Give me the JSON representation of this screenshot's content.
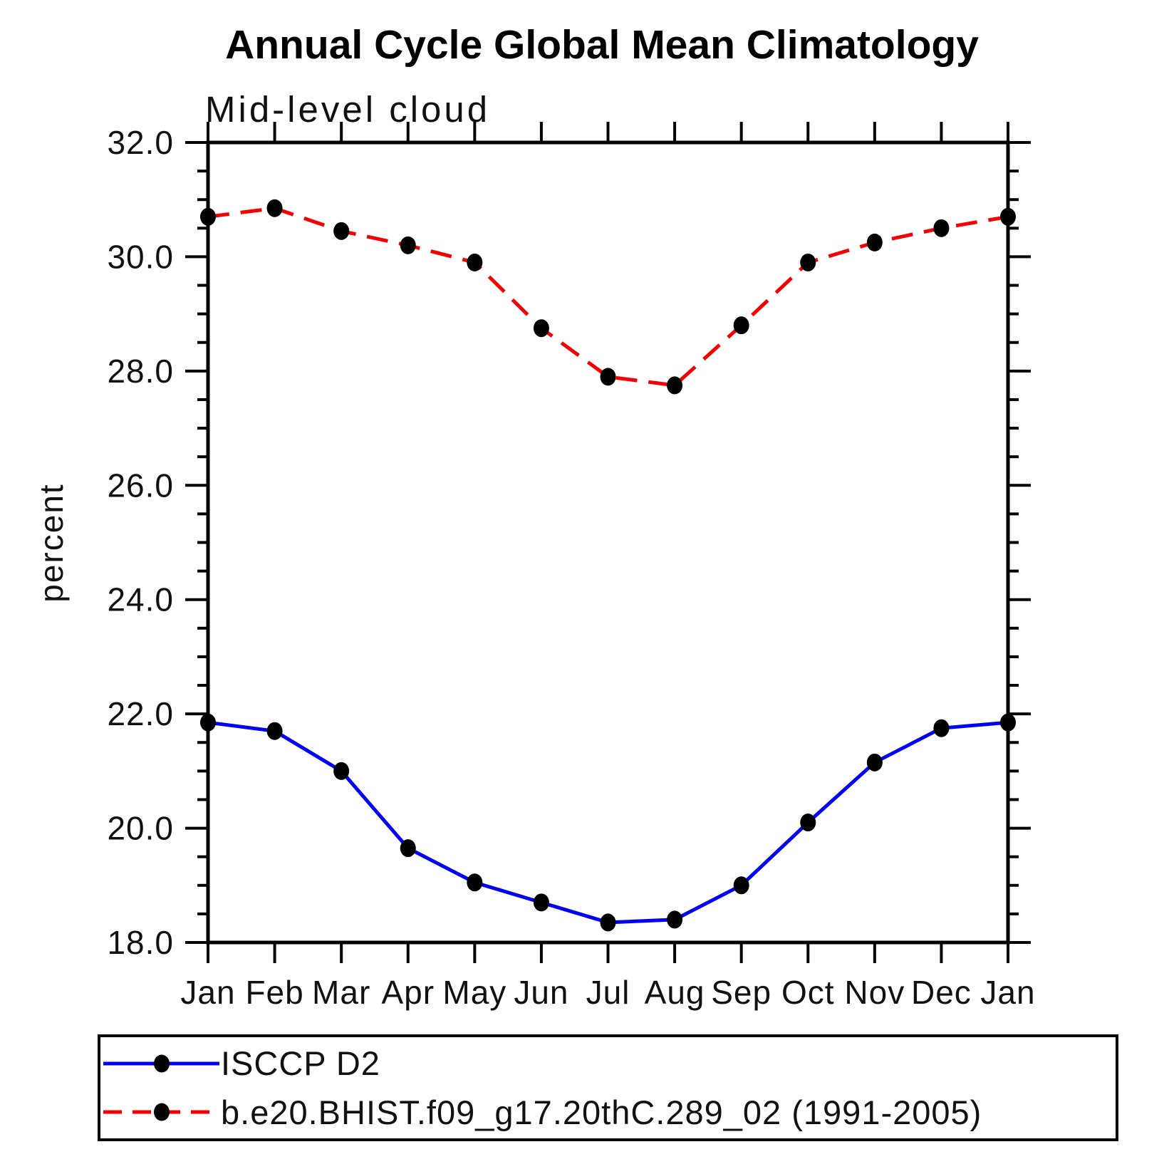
{
  "title": "Annual Cycle Global Mean Climatology",
  "subtitle": "Mid-level cloud",
  "chart_data": {
    "type": "line",
    "title": "Annual Cycle Global Mean Climatology",
    "subtitle": "Mid-level cloud",
    "xlabel": "",
    "ylabel": "percent",
    "x_categories": [
      "Jan",
      "Feb",
      "Mar",
      "Apr",
      "May",
      "Jun",
      "Jul",
      "Aug",
      "Sep",
      "Oct",
      "Nov",
      "Dec",
      "Jan"
    ],
    "ylim": [
      18.0,
      32.0
    ],
    "ytick_major_step": 2.0,
    "ytick_minor_step": 0.5,
    "ytick_labels": [
      "32.0",
      "30.0",
      "28.0",
      "26.0",
      "24.0",
      "22.0",
      "20.0",
      "18.0"
    ],
    "grid": "off",
    "tick_direction": "outward",
    "legend_position": "bottom-left-box",
    "marker_color": "#000000",
    "series": [
      {
        "name": "ISCCP D2",
        "color": "#0000f5",
        "line_style": "solid",
        "marker": "filled-circle",
        "values": [
          21.85,
          21.7,
          21.0,
          19.65,
          19.05,
          18.7,
          18.35,
          18.4,
          19.0,
          20.1,
          21.15,
          21.75,
          21.85
        ]
      },
      {
        "name": "b.e20.BHIST.f09_g17.20thC.289_02 (1991-2005)",
        "color": "#f50000",
        "line_style": "dashed",
        "marker": "filled-circle",
        "values": [
          30.7,
          30.85,
          30.45,
          30.2,
          29.9,
          28.75,
          27.9,
          27.75,
          28.8,
          29.9,
          30.25,
          30.5,
          30.7
        ]
      }
    ]
  }
}
